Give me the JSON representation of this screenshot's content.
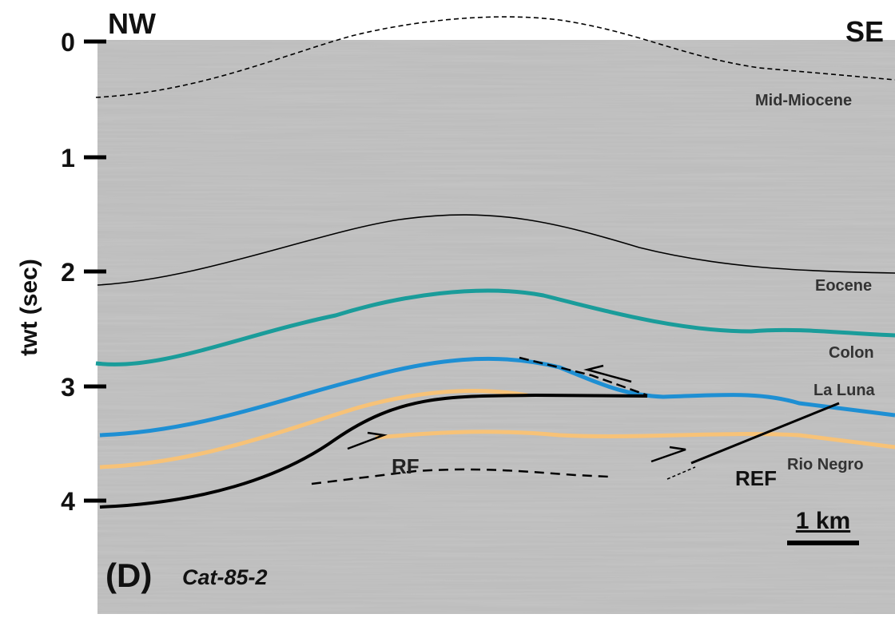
{
  "section": {
    "directions": {
      "left": "NW",
      "right": "SE"
    },
    "axis": {
      "label": "twt (sec)",
      "ticks": [
        "0",
        "1",
        "2",
        "3",
        "4"
      ]
    },
    "horizons": [
      "Mid-Miocene",
      "Eocene",
      "Colon",
      "La Luna",
      "Rio Negro"
    ],
    "faults": [
      "RF",
      "REF"
    ],
    "panel": "(D)",
    "line_name": "Cat-85-2",
    "scale_bar": "1 km"
  }
}
